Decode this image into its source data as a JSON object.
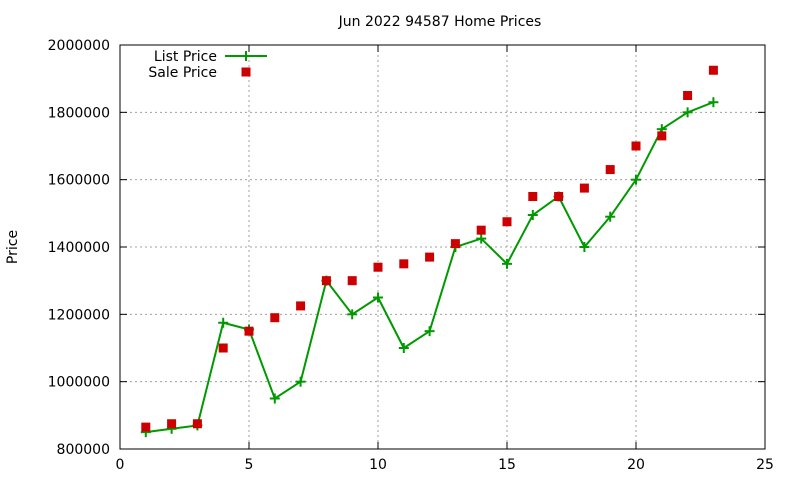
{
  "chart_data": {
    "type": "line",
    "title": "Jun 2022 94587 Home Prices",
    "xlabel": "",
    "ylabel": "Price",
    "xlim": [
      0,
      25
    ],
    "ylim": [
      800000,
      2000000
    ],
    "xticks": [
      0,
      5,
      10,
      15,
      20,
      25
    ],
    "yticks": [
      800000,
      1000000,
      1200000,
      1400000,
      1600000,
      1800000,
      2000000
    ],
    "grid": true,
    "legend_position": "top-left",
    "series": [
      {
        "name": "List Price",
        "style": "line-points",
        "marker": "plus",
        "color": "#009900",
        "x": [
          1,
          2,
          3,
          4,
          5,
          6,
          7,
          8,
          9,
          10,
          11,
          12,
          13,
          14,
          15,
          16,
          17,
          18,
          19,
          20,
          21,
          22,
          23
        ],
        "y": [
          850000,
          860000,
          870000,
          1175000,
          1155000,
          950000,
          1000000,
          1300000,
          1200000,
          1250000,
          1100000,
          1150000,
          1400000,
          1425000,
          1350000,
          1495000,
          1550000,
          1400000,
          1490000,
          1600000,
          1750000,
          1800000,
          1830000
        ]
      },
      {
        "name": "Sale Price",
        "style": "points",
        "marker": "square",
        "color": "#cc0000",
        "x": [
          1,
          2,
          3,
          4,
          5,
          6,
          7,
          8,
          9,
          10,
          11,
          12,
          13,
          14,
          15,
          16,
          17,
          18,
          19,
          20,
          21,
          22,
          23
        ],
        "y": [
          865000,
          875000,
          875000,
          1100000,
          1150000,
          1190000,
          1225000,
          1300000,
          1300000,
          1340000,
          1350000,
          1370000,
          1410000,
          1450000,
          1475000,
          1550000,
          1550000,
          1575000,
          1630000,
          1700000,
          1730000,
          1850000,
          1925000
        ]
      }
    ]
  }
}
